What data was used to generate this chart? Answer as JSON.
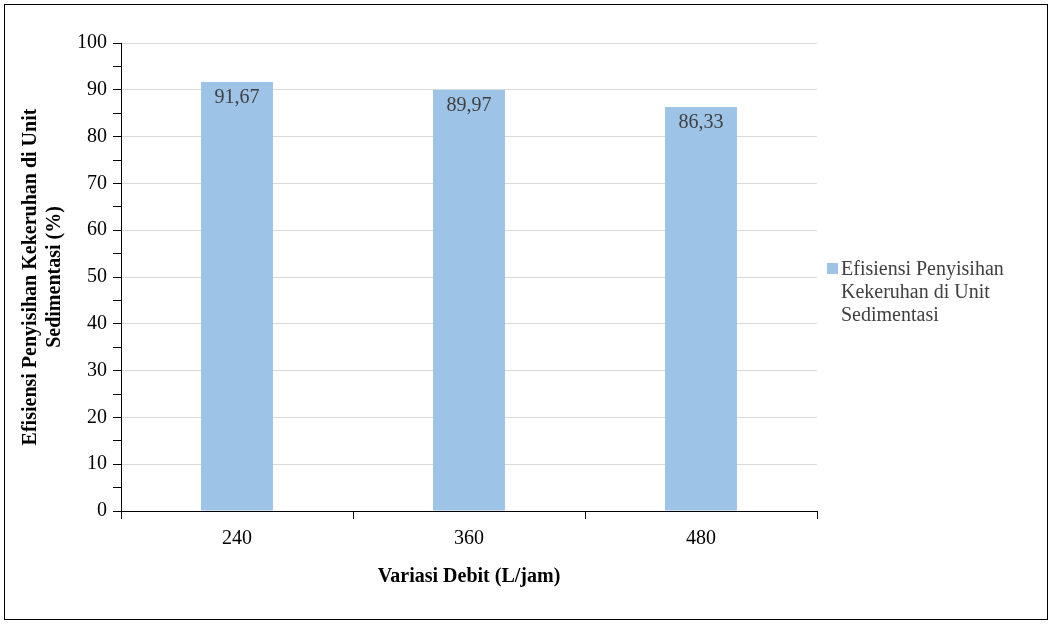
{
  "chart_data": {
    "type": "bar",
    "categories": [
      "240",
      "360",
      "480"
    ],
    "series": [
      {
        "name": "Efisiensi Penyisihan Kekeruhan di Unit Sedimentasi",
        "color": "#9dc3e6",
        "values": [
          91.67,
          89.97,
          86.33
        ],
        "value_labels": [
          "91,67",
          "89,97",
          "86,33"
        ]
      }
    ],
    "xlabel": "Variasi Debit (L/jam)",
    "ylabel": "Efisiensi Penyisihan Kekeruhan di Unit Sedimentasi (%)",
    "ylim": [
      0,
      100
    ],
    "yticks": [
      0,
      {
        "value": 5,
        "label": null
      },
      10,
      {
        "value": 15,
        "label": null
      },
      20,
      {
        "value": 25,
        "label": null
      },
      30,
      {
        "value": 35,
        "label": null
      },
      40,
      {
        "value": 45,
        "label": null
      },
      50,
      {
        "value": 55,
        "label": null
      },
      60,
      {
        "value": 65,
        "label": null
      },
      70,
      {
        "value": 75,
        "label": null
      },
      80,
      {
        "value": 85,
        "label": null
      },
      90,
      {
        "value": 95,
        "label": null
      },
      100
    ],
    "grid": "y",
    "legend": "right"
  }
}
